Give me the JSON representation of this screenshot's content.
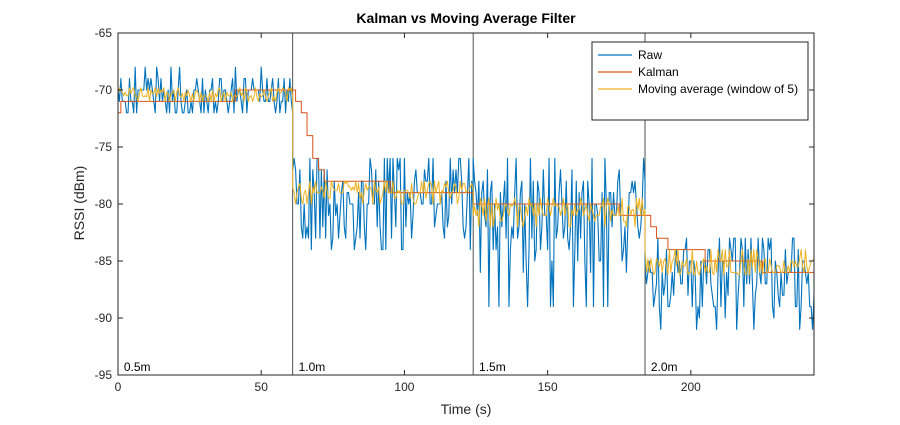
{
  "chart_data": {
    "type": "line",
    "title": "Kalman vs Moving Average Filter",
    "xlabel": "Time (s)",
    "ylabel": "RSSI (dBm)",
    "xlim": [
      0,
      243
    ],
    "ylim": [
      -95,
      -65
    ],
    "xticks": [
      0,
      50,
      100,
      150,
      200
    ],
    "yticks": [
      -95,
      -90,
      -85,
      -80,
      -75,
      -70,
      -65
    ],
    "grid": false,
    "legend_position": "top-right",
    "vlines": [
      {
        "x": 61,
        "label": "1.0m"
      },
      {
        "x": 124,
        "label": "1.5m"
      },
      {
        "x": 184,
        "label": "2.0m"
      }
    ],
    "annotations": [
      {
        "x": 1,
        "y": -94.3,
        "text": "0.5m"
      },
      {
        "x": 62,
        "y": -94.3,
        "text": "1.0m"
      },
      {
        "x": 125,
        "y": -94.3,
        "text": "1.5m"
      },
      {
        "x": 185,
        "y": -94.3,
        "text": "2.0m"
      }
    ],
    "sample_interval_s": 0.5,
    "series": [
      {
        "name": "Raw",
        "color": "#0072BD",
        "segments": [
          {
            "x_start": 0,
            "x_end": 61,
            "levels": [
              -69,
              -70,
              -71,
              -72,
              -70,
              -69,
              -71,
              -70,
              -72,
              -69,
              -71,
              -70,
              -68,
              -71,
              -70,
              -72
            ],
            "min": -72,
            "max": -68
          },
          {
            "x_start": 61,
            "x_end": 124,
            "levels": [
              -76,
              -80,
              -78,
              -82,
              -77,
              -83,
              -79,
              -76,
              -81,
              -78,
              -84,
              -80,
              -77,
              -82,
              -79,
              -83
            ],
            "min": -84,
            "max": -76
          },
          {
            "x_start": 124,
            "x_end": 184,
            "levels": [
              -77,
              -82,
              -79,
              -85,
              -78,
              -83,
              -80,
              -76,
              -84,
              -81,
              -79,
              -86,
              -78,
              -82,
              -80,
              -89
            ],
            "min": -89,
            "max": -76
          },
          {
            "x_start": 184,
            "x_end": 243,
            "levels": [
              -83,
              -87,
              -85,
              -89,
              -84,
              -86,
              -88,
              -83,
              -90,
              -85,
              -87,
              -84,
              -89,
              -86,
              -88,
              -91
            ],
            "min": -91,
            "max": -83
          }
        ]
      },
      {
        "name": "Kalman",
        "color": "#D95319",
        "points": [
          [
            0,
            -72
          ],
          [
            1,
            -71
          ],
          [
            40,
            -71
          ],
          [
            41,
            -70
          ],
          [
            61,
            -70
          ],
          [
            62,
            -71
          ],
          [
            64,
            -72
          ],
          [
            66,
            -74
          ],
          [
            68,
            -76
          ],
          [
            70,
            -77
          ],
          [
            72,
            -78
          ],
          [
            80,
            -78
          ],
          [
            90,
            -78
          ],
          [
            95,
            -79
          ],
          [
            110,
            -79
          ],
          [
            124,
            -80
          ],
          [
            150,
            -80
          ],
          [
            165,
            -80
          ],
          [
            175,
            -81
          ],
          [
            184,
            -81
          ],
          [
            186,
            -82
          ],
          [
            188,
            -83
          ],
          [
            192,
            -84
          ],
          [
            200,
            -84
          ],
          [
            205,
            -85
          ],
          [
            220,
            -85
          ],
          [
            225,
            -86
          ],
          [
            243,
            -86
          ]
        ]
      },
      {
        "name": "Moving average (window of 5)",
        "color": "#EDB120",
        "segments": [
          {
            "x_start": 0,
            "x_end": 61,
            "levels": [
              -70,
              -70.5,
              -71,
              -70.2,
              -69.8,
              -70.6,
              -71,
              -70.3
            ],
            "min": -71.5,
            "max": -69.5
          },
          {
            "x_start": 61,
            "x_end": 124,
            "levels": [
              -78,
              -79,
              -78.5,
              -80,
              -79,
              -78.2,
              -79.5,
              -78.8
            ],
            "min": -80.5,
            "max": -77.5
          },
          {
            "x_start": 124,
            "x_end": 184,
            "levels": [
              -80,
              -81,
              -80.5,
              -82,
              -79.5,
              -81,
              -80.2,
              -81.5
            ],
            "min": -82.5,
            "max": -79
          },
          {
            "x_start": 184,
            "x_end": 243,
            "levels": [
              -84,
              -85.5,
              -85,
              -86,
              -84.8,
              -86.2,
              -85.4,
              -86
            ],
            "min": -87,
            "max": -84
          }
        ]
      }
    ]
  }
}
